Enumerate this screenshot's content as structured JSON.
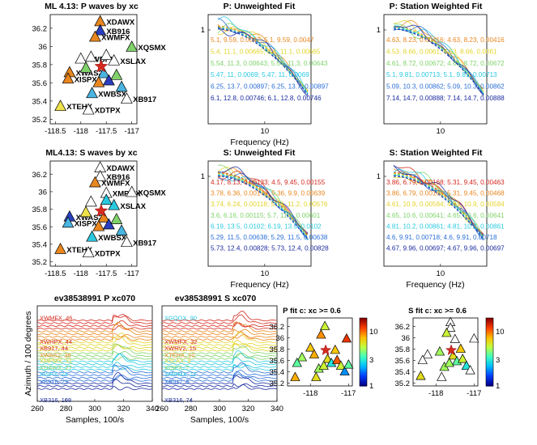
{
  "chart_data": [
    {
      "type": "scatter",
      "title": "ML 4.13: P waves by xc",
      "xticks": [
        "-118.5",
        "-118",
        "-117.5",
        "-117"
      ],
      "yticks": [
        "36.2",
        "36",
        "35.8",
        "35.6",
        "35.4",
        "35.2"
      ],
      "xlim": [
        -118.6,
        -116.9
      ],
      "ylim": [
        35.15,
        36.35
      ],
      "epicenter": [
        -117.6,
        35.78
      ],
      "stations": [
        {
          "name": "XDAWX",
          "lon": -117.62,
          "lat": 36.27,
          "color": "#e9871f",
          "show": true
        },
        {
          "name": "XB916",
          "lon": -117.62,
          "lat": 36.17,
          "color": "#2a3fbf",
          "show": true
        },
        {
          "name": "XWMFX",
          "lon": -117.72,
          "lat": 36.1,
          "color": "#e9871f",
          "show": true
        },
        {
          "name": "XQSMX",
          "lon": -117.0,
          "lat": 35.99,
          "color": "#7fd36a",
          "show": true
        },
        {
          "name": "XWBPX",
          "lon": -118.0,
          "lat": 35.86,
          "color": "#ffffff",
          "show": true
        },
        {
          "name": "XSLAX",
          "lon": -117.35,
          "lat": 35.84,
          "color": "#ffffff",
          "show": true
        },
        {
          "name": "XWAS2",
          "lon": -118.22,
          "lat": 35.71,
          "color": "#e9871f",
          "show": true
        },
        {
          "name": "XISPX",
          "lon": -118.25,
          "lat": 35.64,
          "color": "#e9871f",
          "show": true
        },
        {
          "name": "XWBSX",
          "lon": -117.78,
          "lat": 35.48,
          "color": "#4ab5e0",
          "show": true
        },
        {
          "name": "XB917",
          "lon": -117.1,
          "lat": 35.42,
          "color": "#ffffff",
          "show": true
        },
        {
          "name": "XTEHX",
          "lon": -118.4,
          "lat": 35.34,
          "color": "#f0e24b",
          "show": true
        },
        {
          "name": "XDTPX",
          "lon": -117.85,
          "lat": 35.3,
          "color": "#ffffff",
          "show": true
        },
        {
          "name": "S1",
          "lon": -117.9,
          "lat": 35.76,
          "color": "#7fd36a",
          "show": false
        },
        {
          "name": "S2",
          "lon": -117.55,
          "lat": 35.7,
          "color": "#4ab5e0",
          "show": false
        },
        {
          "name": "S3",
          "lon": -117.45,
          "lat": 35.62,
          "color": "#2a3fbf",
          "show": false
        },
        {
          "name": "S4",
          "lon": -117.3,
          "lat": 35.68,
          "color": "#7fd36a",
          "show": false
        },
        {
          "name": "S5",
          "lon": -117.65,
          "lat": 35.6,
          "color": "#e9871f",
          "show": false
        },
        {
          "name": "S6",
          "lon": -117.2,
          "lat": 35.55,
          "color": "#4ab5e0",
          "show": false
        },
        {
          "name": "S7",
          "lon": -117.8,
          "lat": 35.88,
          "color": "#ffffff",
          "show": false
        },
        {
          "name": "S8",
          "lon": -117.5,
          "lat": 35.9,
          "color": "#ffffff",
          "show": false
        }
      ]
    },
    {
      "type": "line",
      "title": "P: Unweighted Fit",
      "xlabel": "Frequency (Hz)",
      "xticks": [
        "10"
      ],
      "yticks": [
        "1"
      ],
      "annotations": [
        {
          "text": "5.1, 9.59, 0.0047; 5.1, 9.59, 0.0047",
          "color": "#e9871f"
        },
        {
          "text": "5.4, 11.1, 0.00665; 5.4, 11.1, 0.00665",
          "color": "#e3d42a"
        },
        {
          "text": "5.54, 11.3, 0.00643; 5.54, 11.3, 0.00643",
          "color": "#7fd36a"
        },
        {
          "text": "5.47, 11, 0.0069; 5.47, 11, 0.0069",
          "color": "#2ac9e0"
        },
        {
          "text": "6.25, 13.7, 0.00897; 6.25, 13.7, 0.00897",
          "color": "#2a6fd6"
        },
        {
          "text": "6.1, 12.8, 0.00746; 6.1, 12.8, 0.00746",
          "color": "#1b2b9f"
        }
      ]
    },
    {
      "type": "line",
      "title": "P: Station Weighted Fit",
      "xlabel": "",
      "xticks": [
        "10"
      ],
      "yticks": [
        "1"
      ],
      "annotations": [
        {
          "text": "4.63, 8.23, 0.00416; 4.63, 8.23, 0.00416",
          "color": "#e9871f"
        },
        {
          "text": "4.53, 8.66, 0.0061; 4.53, 8.66, 0.0061",
          "color": "#e3d42a"
        },
        {
          "text": "4.61, 8.72, 0.00672; 4.61, 8.72, 0.00672",
          "color": "#7fd36a"
        },
        {
          "text": "5.1, 9.81, 0.00713; 5.1, 9.81, 0.00713",
          "color": "#2ac9e0"
        },
        {
          "text": "5.09, 10.3, 0.00862; 5.09, 10.3, 0.00862",
          "color": "#2a6fd6"
        },
        {
          "text": "7.14, 14.7, 0.00888; 7.14, 14.7, 0.00888",
          "color": "#1b2b9f"
        }
      ]
    },
    {
      "type": "scatter",
      "title": "ML4.13: S waves by xc",
      "xticks": [
        "-118.5",
        "-118",
        "-117.5",
        "-117"
      ],
      "yticks": [
        "36.2",
        "36",
        "35.8",
        "35.6",
        "35.4",
        "35.2"
      ],
      "xlim": [
        -118.6,
        -116.9
      ],
      "ylim": [
        35.15,
        36.35
      ],
      "epicenter": [
        -117.6,
        35.78
      ],
      "stations": [
        {
          "name": "XDAWX",
          "lon": -117.62,
          "lat": 36.27,
          "color": "#ffffff",
          "show": true
        },
        {
          "name": "XB916",
          "lon": -117.62,
          "lat": 36.17,
          "color": "#ffffff",
          "show": true
        },
        {
          "name": "XWMFX",
          "lon": -117.72,
          "lat": 36.1,
          "color": "#e9871f",
          "show": true
        },
        {
          "name": "XMPMX",
          "lon": -117.5,
          "lat": 35.98,
          "color": "#ffffff",
          "show": true
        },
        {
          "name": "XQSMX",
          "lon": -117.0,
          "lat": 35.99,
          "color": "#ffffff",
          "show": true
        },
        {
          "name": "XSLAX",
          "lon": -117.35,
          "lat": 35.84,
          "color": "#2ac9e0",
          "show": true
        },
        {
          "name": "XWAS2",
          "lon": -118.22,
          "lat": 35.71,
          "color": "#2a3fbf",
          "show": true
        },
        {
          "name": "XISPX",
          "lon": -118.25,
          "lat": 35.64,
          "color": "#4ab5e0",
          "show": true
        },
        {
          "name": "XWBSX",
          "lon": -117.78,
          "lat": 35.48,
          "color": "#2ac9e0",
          "show": true
        },
        {
          "name": "XB917",
          "lon": -117.1,
          "lat": 35.42,
          "color": "#ffffff",
          "show": true
        },
        {
          "name": "XTEHX",
          "lon": -118.4,
          "lat": 35.34,
          "color": "#e9871f",
          "show": true
        },
        {
          "name": "XDTPX",
          "lon": -117.85,
          "lat": 35.3,
          "color": "#ffffff",
          "show": true
        },
        {
          "name": "S1",
          "lon": -117.9,
          "lat": 35.76,
          "color": "#f0e24b",
          "show": false
        },
        {
          "name": "S2",
          "lon": -117.55,
          "lat": 35.7,
          "color": "#e9871f",
          "show": false
        },
        {
          "name": "S3",
          "lon": -117.45,
          "lat": 35.62,
          "color": "#2a3fbf",
          "show": false
        },
        {
          "name": "S4",
          "lon": -117.3,
          "lat": 35.68,
          "color": "#7fd36a",
          "show": false
        },
        {
          "name": "S5",
          "lon": -117.65,
          "lat": 35.6,
          "color": "#e9871f",
          "show": false
        },
        {
          "name": "S6",
          "lon": -117.2,
          "lat": 35.55,
          "color": "#4ab5e0",
          "show": false
        },
        {
          "name": "S7",
          "lon": -117.8,
          "lat": 35.88,
          "color": "#ffffff",
          "show": false
        },
        {
          "name": "S8",
          "lon": -117.5,
          "lat": 35.9,
          "color": "#2ac9e0",
          "show": false
        }
      ]
    },
    {
      "type": "line",
      "title": "S: Unweighted Fit",
      "xlabel": "Frequency (Hz)",
      "xticks": [
        "10"
      ],
      "yticks": [
        "1"
      ],
      "annotations": [
        {
          "text": "4.17, 8.13, 0.00133; 4.5, 9.45, 0.00155",
          "color": "#d42a1f"
        },
        {
          "text": "3.78, 6.36, 0.00176; 5.36, 9.9, 0.00639",
          "color": "#e9871f"
        },
        {
          "text": "3.74, 6.24, 0.00118; 5.74, 11.2, 0.00576",
          "color": "#e3d42a"
        },
        {
          "text": "3.6, 6.16, 0.00115; 5.7, 11.7, 0.00601",
          "color": "#7fd36a"
        },
        {
          "text": "6.19, 13.5, 0.0102; 6.19, 13.5, 0.0102",
          "color": "#2ac9e0"
        },
        {
          "text": "5.29, 11.5, 0.00638; 5.29, 11.5, 0.00638",
          "color": "#2a6fd6"
        },
        {
          "text": "5.73, 12.4, 0.00828; 5.73, 12.4, 0.00828",
          "color": "#1b2b9f"
        }
      ]
    },
    {
      "type": "line",
      "title": "S: Station Weighted Fit",
      "xlabel": "Frequency (Hz)",
      "xticks": [
        "10"
      ],
      "yticks": [
        "1"
      ],
      "annotations": [
        {
          "text": "3.86, 6.79, 0.00168; 5.31, 9.45, 0.00463",
          "color": "#d42a1f"
        },
        {
          "text": "3.86, 6.79, 0.00168; 5.31, 9.45, 0.00468",
          "color": "#e9871f"
        },
        {
          "text": "4.61, 10.9, 0.00584; 4.61, 10.9, 0.00584",
          "color": "#e3d42a"
        },
        {
          "text": "4.65, 10.6, 0.00641; 4.65, 10.6, 0.00641",
          "color": "#7fd36a"
        },
        {
          "text": "4.81, 10.2, 0.00861; 4.81, 10.2, 0.00861",
          "color": "#2ac9e0"
        },
        {
          "text": "4.6, 9.91, 0.00718; 4.6, 9.91, 0.00718",
          "color": "#2a6fd6"
        },
        {
          "text": "4.67, 9.96, 0.00697; 4.67, 9.96, 0.00697",
          "color": "#1b2b9f"
        }
      ]
    },
    {
      "type": "line",
      "title": "ev38538991 P xc070",
      "xlabel": "Samples, 100/s",
      "ylabel": "Azimuth / 100 degrees",
      "xticks": [
        "260",
        "280",
        "300",
        "320",
        "340"
      ],
      "xlim": [
        260,
        340
      ],
      "labels": [
        {
          "text": "XWMFX, 46",
          "color": "#d42a1f"
        },
        {
          "text": "XWHPX, 44",
          "color": "#d42a1f"
        },
        {
          "text": "XB917, 44",
          "color": "#d42a1f"
        },
        {
          "text": "XWAS2, 36",
          "color": "#e9871f"
        },
        {
          "text": "XMPMX, 31",
          "color": "#e3d42a"
        },
        {
          "text": "XDAWX, 27",
          "color": "#7fd36a"
        },
        {
          "text": "XISPX, 24",
          "color": "#2ac9e0"
        },
        {
          "text": "XB916, 23",
          "color": "#2a6fd6"
        },
        {
          "text": "XB316, 108",
          "color": "#1b2b9f"
        }
      ]
    },
    {
      "type": "line",
      "title": "ev38538991 S xc070",
      "xlabel": "Samples, 100/s",
      "xticks": [
        "260",
        "280",
        "300",
        "320",
        "340"
      ],
      "xlim": [
        260,
        340
      ],
      "labels": [
        {
          "text": "XGQOX, 90",
          "color": "#2ac9e0"
        },
        {
          "text": "XWMFX, 32",
          "color": "#d42a1f"
        },
        {
          "text": "XWRV2, 15",
          "color": "#d42a1f"
        },
        {
          "text": "XTEHX, 10",
          "color": "#e9871f"
        },
        {
          "text": "XSLAX, 9",
          "color": "#e3d42a"
        },
        {
          "text": "XISPX, 7",
          "color": "#7fd36a"
        },
        {
          "text": "XMPMX, 11",
          "color": "#2ac9e0"
        },
        {
          "text": "XB917, 5",
          "color": "#2a6fd6"
        },
        {
          "text": "XB316, 74",
          "color": "#1b2b9f"
        }
      ]
    },
    {
      "type": "scatter",
      "title": "P fit c: xc >= 0.6",
      "xticks": [
        "-118",
        "-117"
      ],
      "yticks": [
        "36.2",
        "36",
        "35.8",
        "35.6",
        "35.4",
        "35.2"
      ],
      "xlim": [
        -118.6,
        -116.9
      ],
      "ylim": [
        35.15,
        36.35
      ],
      "epicenter": [
        -117.6,
        35.78
      ],
      "colorbar_ticks": [
        "10",
        "3",
        "1"
      ],
      "stations": [
        {
          "lon": -117.62,
          "lat": 36.2,
          "value": 6
        },
        {
          "lon": -117.72,
          "lat": 36.05,
          "value": 10
        },
        {
          "lon": -117.05,
          "lat": 35.98,
          "value": 14
        },
        {
          "lon": -118.0,
          "lat": 35.82,
          "value": 8
        },
        {
          "lon": -117.35,
          "lat": 35.78,
          "value": 8
        },
        {
          "lon": -118.22,
          "lat": 35.65,
          "value": 5
        },
        {
          "lon": -118.35,
          "lat": 35.55,
          "value": 4
        },
        {
          "lon": -117.9,
          "lat": 35.7,
          "value": 9
        },
        {
          "lon": -117.55,
          "lat": 35.62,
          "value": 7
        },
        {
          "lon": -117.45,
          "lat": 35.55,
          "value": 3
        },
        {
          "lon": -117.3,
          "lat": 35.6,
          "value": 12
        },
        {
          "lon": -117.2,
          "lat": 35.5,
          "value": 6
        },
        {
          "lon": -117.78,
          "lat": 35.45,
          "value": 5
        },
        {
          "lon": -117.1,
          "lat": 35.4,
          "value": 2
        },
        {
          "lon": -118.4,
          "lat": 35.3,
          "value": 9
        },
        {
          "lon": -117.85,
          "lat": 35.3,
          "value": 7
        },
        {
          "lon": -117.65,
          "lat": 35.5,
          "value": 6
        },
        {
          "lon": -117.0,
          "lat": 35.52,
          "value": 4
        }
      ]
    },
    {
      "type": "scatter",
      "title": "S fit c: xc >= 0.6",
      "xticks": [
        "-118",
        "-117"
      ],
      "yticks": [
        "36.2",
        "36",
        "35.8",
        "35.6",
        "35.4",
        "35.2"
      ],
      "xlim": [
        -118.6,
        -116.9
      ],
      "ylim": [
        35.15,
        36.35
      ],
      "epicenter": [
        -117.6,
        35.78
      ],
      "colorbar_ticks": [
        "10",
        "3",
        "1"
      ],
      "stations": [
        {
          "lon": -117.62,
          "lat": 36.27,
          "value": null
        },
        {
          "lon": -117.62,
          "lat": 36.17,
          "value": null
        },
        {
          "lon": -117.72,
          "lat": 36.08,
          "value": 6
        },
        {
          "lon": -117.0,
          "lat": 35.98,
          "value": null
        },
        {
          "lon": -117.5,
          "lat": 35.97,
          "value": null
        },
        {
          "lon": -118.22,
          "lat": 35.7,
          "value": null
        },
        {
          "lon": -118.35,
          "lat": 35.6,
          "value": null
        },
        {
          "lon": -117.9,
          "lat": 35.75,
          "value": 5
        },
        {
          "lon": -117.55,
          "lat": 35.68,
          "value": 7
        },
        {
          "lon": -117.45,
          "lat": 35.58,
          "value": 4
        },
        {
          "lon": -117.35,
          "lat": 35.8,
          "value": 8
        },
        {
          "lon": -117.3,
          "lat": 35.62,
          "value": 6
        },
        {
          "lon": -117.78,
          "lat": 35.48,
          "value": 5
        },
        {
          "lon": -117.2,
          "lat": 35.5,
          "value": 3
        },
        {
          "lon": -117.1,
          "lat": 35.42,
          "value": null
        },
        {
          "lon": -117.85,
          "lat": 35.3,
          "value": null
        },
        {
          "lon": -118.4,
          "lat": 35.32,
          "value": 7
        },
        {
          "lon": -117.65,
          "lat": 35.55,
          "value": 5
        }
      ]
    }
  ]
}
